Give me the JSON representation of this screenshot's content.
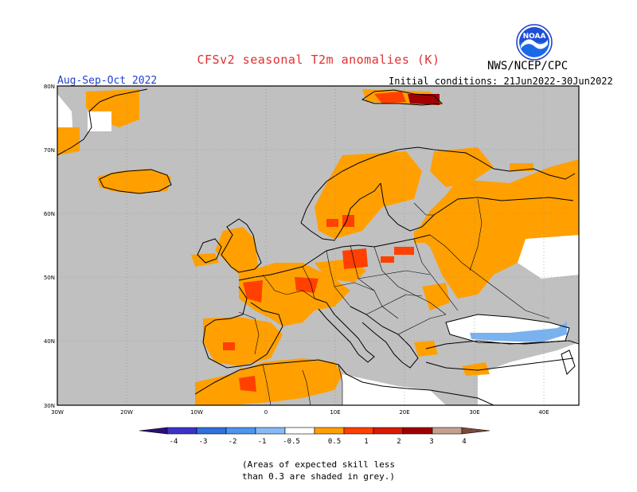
{
  "header": {
    "title": "CFSv2 seasonal T2m anomalies (K)",
    "organization": "NWS/NCEP/CPC",
    "season": "Aug-Sep-Oct 2022",
    "initial_conditions": "Initial conditions: 21Jun2022-30Jun2022",
    "logo_text": "NOAA"
  },
  "map": {
    "latitude_labels": [
      "80N",
      "70N",
      "60N",
      "50N",
      "40N",
      "30N"
    ],
    "longitude_labels": [
      "30W",
      "20W",
      "10W",
      "0",
      "10E",
      "20E",
      "30E",
      "40E"
    ],
    "land_color": "#c0c0c0",
    "sea_color": "#ffffff",
    "border_color": "#000000"
  },
  "colorbar": {
    "labels": [
      "-4",
      "-3",
      "-2",
      "-1",
      "-0.5",
      "0.5",
      "1",
      "2",
      "3",
      "4"
    ],
    "colors": {
      "below_-4": "#2a0f7a",
      "-4_to_-3": "#3b33c9",
      "-3_to_-2": "#2f6fe0",
      "-2_to_-1": "#4d95ee",
      "-1_to_-0.5": "#88baf5",
      "-0.5_to_0.5": "#ffffff",
      "0.5_to_1": "#ffa000",
      "1_to_2": "#ff4000",
      "2_to_3": "#d81a00",
      "3_to_4": "#a00000",
      "4_to_above": "#c8a090",
      "above": "#7a4a3a"
    }
  },
  "footnote": "(Areas of expected skill less\nthan 0.3 are shaded in grey.)"
}
